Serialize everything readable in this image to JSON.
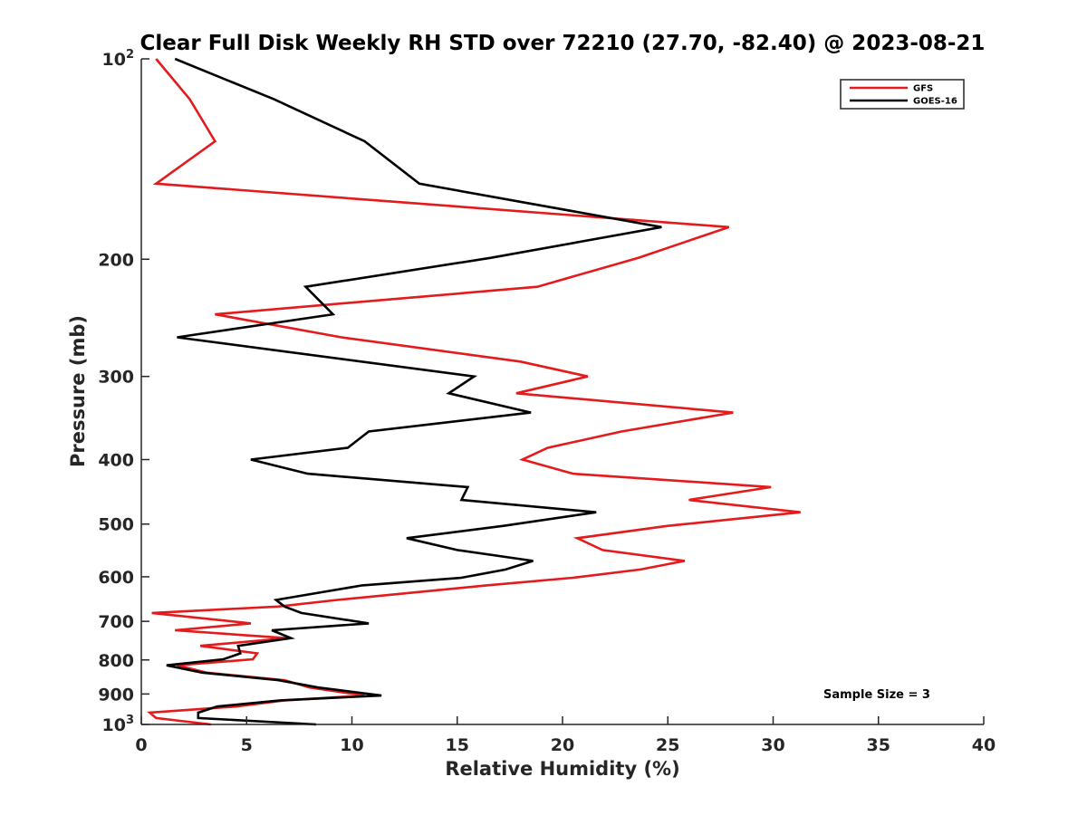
{
  "chart_data": {
    "type": "line",
    "title": "Clear Full Disk Weekly RH STD over 72210 (27.70, -82.40) @ 2023-08-21",
    "xlabel": "Relative Humidity (%)",
    "ylabel": "Pressure (mb)",
    "xlim": [
      0,
      40
    ],
    "ylim": [
      100,
      1000
    ],
    "y_scale": "log",
    "y_reversed": true,
    "grid": false,
    "legend_position": "top-right",
    "annotation": "Sample Size = 3",
    "x_ticks": [
      {
        "value": 0,
        "label": "0"
      },
      {
        "value": 5,
        "label": "5"
      },
      {
        "value": 10,
        "label": "10"
      },
      {
        "value": 15,
        "label": "15"
      },
      {
        "value": 20,
        "label": "20"
      },
      {
        "value": 25,
        "label": "25"
      },
      {
        "value": 30,
        "label": "30"
      },
      {
        "value": 35,
        "label": "35"
      },
      {
        "value": 40,
        "label": "40"
      }
    ],
    "y_ticks": [
      {
        "value": 100,
        "label": "10",
        "sup": "2"
      },
      {
        "value": 200,
        "label": "200",
        "sup": ""
      },
      {
        "value": 300,
        "label": "300",
        "sup": ""
      },
      {
        "value": 400,
        "label": "400",
        "sup": ""
      },
      {
        "value": 500,
        "label": "500",
        "sup": ""
      },
      {
        "value": 600,
        "label": "600",
        "sup": ""
      },
      {
        "value": 700,
        "label": "700",
        "sup": ""
      },
      {
        "value": 800,
        "label": "800",
        "sup": ""
      },
      {
        "value": 900,
        "label": "900",
        "sup": ""
      },
      {
        "value": 1000,
        "label": "10",
        "sup": "3"
      }
    ],
    "series": [
      {
        "name": "GFS",
        "color": "#e41a1c",
        "points": [
          {
            "x": 0.7,
            "y": 100
          },
          {
            "x": 2.3,
            "y": 115
          },
          {
            "x": 3.5,
            "y": 133
          },
          {
            "x": 0.7,
            "y": 154
          },
          {
            "x": 27.9,
            "y": 179
          },
          {
            "x": 23.6,
            "y": 199
          },
          {
            "x": 18.8,
            "y": 220
          },
          {
            "x": 3.5,
            "y": 242
          },
          {
            "x": 9.5,
            "y": 262
          },
          {
            "x": 18.0,
            "y": 285
          },
          {
            "x": 21.2,
            "y": 300
          },
          {
            "x": 17.8,
            "y": 318
          },
          {
            "x": 28.1,
            "y": 340
          },
          {
            "x": 22.8,
            "y": 363
          },
          {
            "x": 19.3,
            "y": 384
          },
          {
            "x": 18.1,
            "y": 400
          },
          {
            "x": 20.5,
            "y": 420
          },
          {
            "x": 29.9,
            "y": 440
          },
          {
            "x": 26.0,
            "y": 460
          },
          {
            "x": 31.3,
            "y": 480
          },
          {
            "x": 25.0,
            "y": 503
          },
          {
            "x": 20.7,
            "y": 525
          },
          {
            "x": 21.9,
            "y": 547
          },
          {
            "x": 25.8,
            "y": 568
          },
          {
            "x": 23.7,
            "y": 585
          },
          {
            "x": 20.5,
            "y": 602
          },
          {
            "x": 16.4,
            "y": 618
          },
          {
            "x": 9.3,
            "y": 650
          },
          {
            "x": 6.5,
            "y": 665
          },
          {
            "x": 0.5,
            "y": 680
          },
          {
            "x": 5.2,
            "y": 705
          },
          {
            "x": 1.6,
            "y": 722
          },
          {
            "x": 6.9,
            "y": 742
          },
          {
            "x": 2.8,
            "y": 762
          },
          {
            "x": 5.5,
            "y": 782
          },
          {
            "x": 5.3,
            "y": 798
          },
          {
            "x": 1.7,
            "y": 815
          },
          {
            "x": 3.1,
            "y": 836
          },
          {
            "x": 6.8,
            "y": 858
          },
          {
            "x": 8.0,
            "y": 880
          },
          {
            "x": 10.6,
            "y": 905
          },
          {
            "x": 6.8,
            "y": 920
          },
          {
            "x": 4.5,
            "y": 940
          },
          {
            "x": 0.4,
            "y": 960
          },
          {
            "x": 0.7,
            "y": 978
          },
          {
            "x": 3.3,
            "y": 1000
          }
        ]
      },
      {
        "name": "GOES-16",
        "color": "#000000",
        "points": [
          {
            "x": 1.6,
            "y": 100
          },
          {
            "x": 6.3,
            "y": 115
          },
          {
            "x": 10.6,
            "y": 133
          },
          {
            "x": 13.2,
            "y": 154
          },
          {
            "x": 24.7,
            "y": 179
          },
          {
            "x": 16.6,
            "y": 199
          },
          {
            "x": 7.8,
            "y": 220
          },
          {
            "x": 9.1,
            "y": 242
          },
          {
            "x": 1.7,
            "y": 262
          },
          {
            "x": 15.8,
            "y": 300
          },
          {
            "x": 14.6,
            "y": 318
          },
          {
            "x": 18.5,
            "y": 340
          },
          {
            "x": 10.8,
            "y": 363
          },
          {
            "x": 9.8,
            "y": 384
          },
          {
            "x": 5.2,
            "y": 400
          },
          {
            "x": 7.9,
            "y": 420
          },
          {
            "x": 15.5,
            "y": 440
          },
          {
            "x": 15.2,
            "y": 460
          },
          {
            "x": 21.6,
            "y": 480
          },
          {
            "x": 17.2,
            "y": 503
          },
          {
            "x": 12.6,
            "y": 525
          },
          {
            "x": 15.0,
            "y": 547
          },
          {
            "x": 18.6,
            "y": 568
          },
          {
            "x": 17.3,
            "y": 585
          },
          {
            "x": 15.2,
            "y": 602
          },
          {
            "x": 10.5,
            "y": 618
          },
          {
            "x": 6.4,
            "y": 650
          },
          {
            "x": 6.8,
            "y": 665
          },
          {
            "x": 7.6,
            "y": 680
          },
          {
            "x": 10.8,
            "y": 705
          },
          {
            "x": 6.2,
            "y": 722
          },
          {
            "x": 7.1,
            "y": 742
          },
          {
            "x": 4.6,
            "y": 762
          },
          {
            "x": 4.7,
            "y": 782
          },
          {
            "x": 3.9,
            "y": 798
          },
          {
            "x": 1.2,
            "y": 815
          },
          {
            "x": 2.9,
            "y": 836
          },
          {
            "x": 6.5,
            "y": 858
          },
          {
            "x": 8.4,
            "y": 880
          },
          {
            "x": 11.4,
            "y": 905
          },
          {
            "x": 6.6,
            "y": 920
          },
          {
            "x": 3.6,
            "y": 940
          },
          {
            "x": 2.7,
            "y": 960
          },
          {
            "x": 2.7,
            "y": 978
          },
          {
            "x": 8.3,
            "y": 1000
          }
        ]
      }
    ]
  }
}
